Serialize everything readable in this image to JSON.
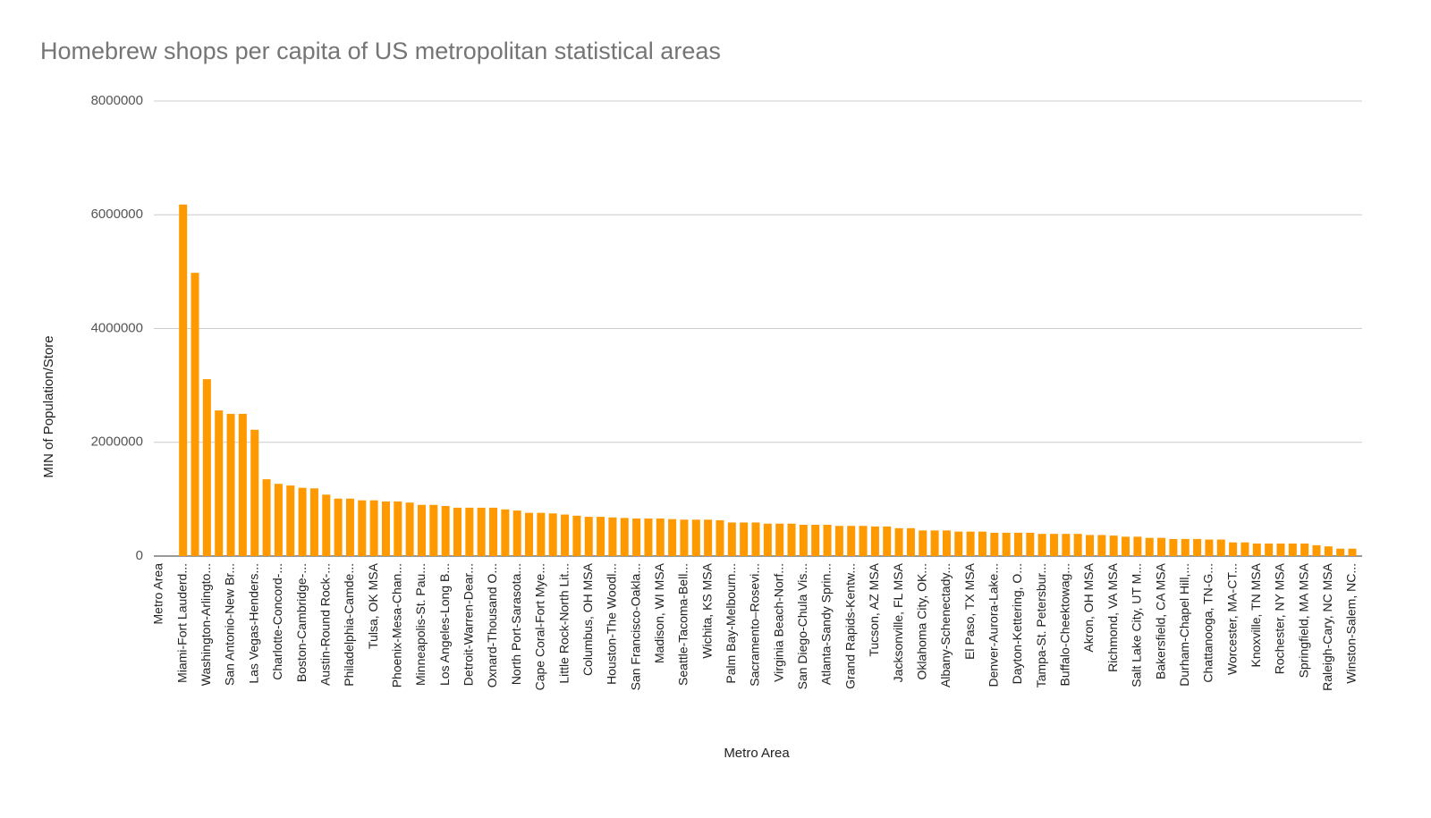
{
  "chart_data": {
    "type": "bar",
    "title": "Homebrew shops per capita of US metropolitan statistical areas",
    "x_label": "Metro Area",
    "y_label": "MIN of Population/Store",
    "color": "#ff9900",
    "grid": true,
    "ylim": [
      0,
      8000000
    ],
    "yticks": [
      0,
      2000000,
      4000000,
      6000000,
      8000000
    ],
    "categories": [
      "Metro Area",
      null,
      "Miami-Fort Lauderd...",
      null,
      "Washington-Arlingto...",
      null,
      "San Antonio-New Br...",
      null,
      "Las Vegas-Henders...",
      null,
      "Charlotte-Concord-...",
      null,
      "Boston-Cambridge-...",
      null,
      "Austin-Round Rock-...",
      null,
      "Philadelphia-Camde...",
      null,
      "Tulsa, OK MSA",
      null,
      "Phoenix-Mesa-Chan...",
      null,
      "Minneapolis-St. Pau...",
      null,
      "Los Angeles-Long B...",
      null,
      "Detroit-Warren-Dear...",
      null,
      "Oxnard-Thousand O...",
      null,
      "North Port-Sarasota...",
      null,
      "Cape Coral-Fort Mye...",
      null,
      "Little Rock-North Lit...",
      null,
      "Columbus, OH MSA",
      null,
      "Houston-The Woodl...",
      null,
      "San Francisco-Oakla...",
      null,
      "Madison, WI MSA",
      null,
      "Seattle-Tacoma-Bell...",
      null,
      "Wichita, KS MSA",
      null,
      "Palm Bay-Melbourn...",
      null,
      "Sacramento–Rosevi...",
      null,
      "Virginia Beach-Norf...",
      null,
      "San Diego-Chula Vis...",
      null,
      "Atlanta-Sandy Sprin...",
      null,
      "Grand Rapids-Kentw...",
      null,
      "Tucson, AZ MSA",
      null,
      "Jacksonville, FL MSA",
      null,
      "Oklahoma City, OK...",
      null,
      "Albany-Schenectady...",
      null,
      "El Paso, TX MSA",
      null,
      "Denver-Aurora-Lake...",
      null,
      "Dayton-Kettering, O...",
      null,
      "Tampa-St. Petersbur...",
      null,
      "Buffalo-Cheektowag...",
      null,
      "Akron, OH MSA",
      null,
      "Richmond, VA MSA",
      null,
      "Salt Lake City, UT M...",
      null,
      "Bakersfield, CA MSA",
      null,
      "Durham-Chapel Hill,...",
      null,
      "Chattanooga, TN-G...",
      null,
      "Worcester, MA-CT...",
      null,
      "Knoxville, TN MSA",
      null,
      "Rochester, NY MSA",
      null,
      "Springfield, MA MSA",
      null,
      "Raleigh-Cary, NC MSA",
      null,
      "Winston-Salem, NC..."
    ],
    "values": [
      null,
      null,
      6180000,
      4980000,
      3110000,
      2560000,
      2500000,
      2500000,
      2220000,
      1350000,
      1270000,
      1240000,
      1200000,
      1190000,
      1080000,
      1010000,
      1010000,
      980000,
      980000,
      960000,
      960000,
      940000,
      900000,
      900000,
      880000,
      850000,
      850000,
      850000,
      850000,
      820000,
      800000,
      760000,
      760000,
      750000,
      730000,
      710000,
      690000,
      690000,
      680000,
      670000,
      660000,
      660000,
      660000,
      650000,
      640000,
      640000,
      640000,
      630000,
      590000,
      590000,
      590000,
      570000,
      570000,
      570000,
      550000,
      550000,
      550000,
      530000,
      530000,
      530000,
      520000,
      520000,
      490000,
      490000,
      450000,
      450000,
      450000,
      430000,
      430000,
      430000,
      410000,
      410000,
      410000,
      410000,
      390000,
      390000,
      390000,
      390000,
      370000,
      370000,
      360000,
      340000,
      340000,
      320000,
      320000,
      300000,
      300000,
      300000,
      290000,
      290000,
      240000,
      240000,
      220000,
      220000,
      220000,
      220000,
      220000,
      190000,
      170000,
      130000,
      130000
    ]
  }
}
